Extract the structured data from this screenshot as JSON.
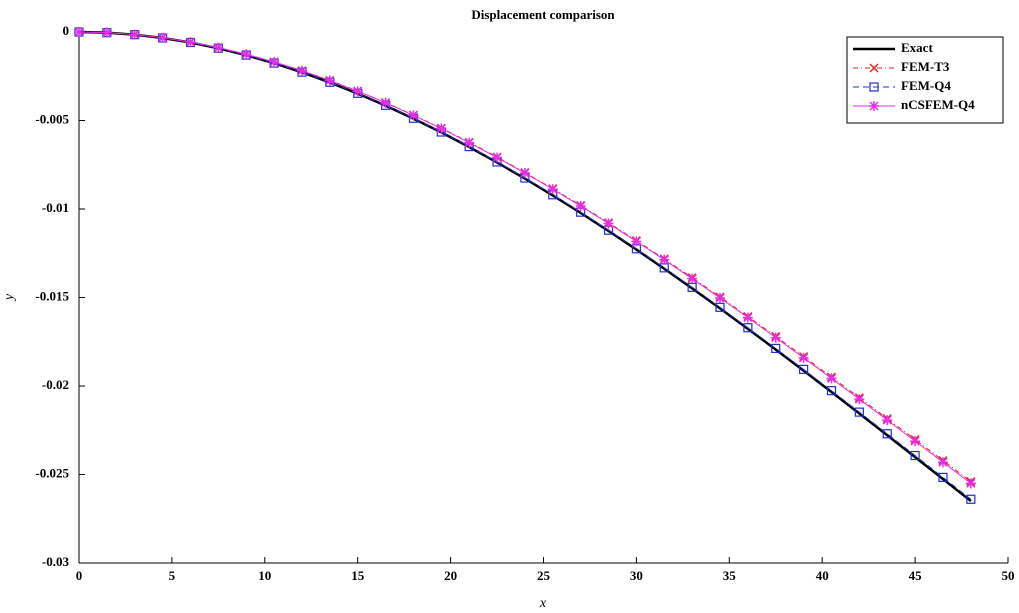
{
  "chart_data": {
    "type": "line",
    "title": "Displacement comparison",
    "x_label": "x",
    "y_label": "y",
    "x": [
      0,
      1.5,
      3,
      4.5,
      6,
      7.5,
      9,
      10.5,
      12,
      13.5,
      15,
      16.5,
      18,
      19.5,
      21,
      22.5,
      24,
      25.5,
      27,
      28.5,
      30,
      31.5,
      33,
      34.5,
      36,
      37.5,
      39,
      40.5,
      42,
      43.5,
      45,
      46.5,
      48
    ],
    "series": [
      {
        "name": "Exact",
        "color": "#000000",
        "dash": "solid",
        "marker": "none",
        "width": 2.5,
        "values": [
          0,
          -3.84e-05,
          -0.000152,
          -0.000338,
          -0.000595,
          -0.00092,
          -0.00131,
          -0.001763,
          -0.002277,
          -0.00285,
          -0.003477,
          -0.004159,
          -0.004891,
          -0.005672,
          -0.006499,
          -0.007369,
          -0.008281,
          -0.009232,
          -0.010219,
          -0.01124,
          -0.012292,
          -0.013374,
          -0.014482,
          -0.015615,
          -0.01677,
          -0.017943,
          -0.019134,
          -0.02034,
          -0.021557,
          -0.022784,
          -0.024019,
          -0.025258,
          -0.0265
        ]
      },
      {
        "name": "FEM-T3",
        "color": "#e8211c",
        "dash": "dashdot",
        "marker": "x",
        "width": 1,
        "values": [
          0,
          -3.68e-05,
          -0.000146,
          -0.000324,
          -0.000571,
          -0.000882,
          -0.001256,
          -0.00169,
          -0.002183,
          -0.002731,
          -0.003333,
          -0.003986,
          -0.004688,
          -0.005436,
          -0.006229,
          -0.007064,
          -0.007938,
          -0.008849,
          -0.009795,
          -0.010773,
          -0.011782,
          -0.012819,
          -0.013881,
          -0.014967,
          -0.016073,
          -0.017199,
          -0.01834,
          -0.019495,
          -0.020662,
          -0.021839,
          -0.023022,
          -0.02421,
          -0.0254
        ]
      },
      {
        "name": "FEM-Q4",
        "color": "#1f2fd0",
        "dash": "dashed",
        "marker": "square",
        "width": 1,
        "values": [
          0,
          -3.83e-05,
          -0.000151,
          -0.000337,
          -0.000593,
          -0.000916,
          -0.001305,
          -0.001757,
          -0.002269,
          -0.002839,
          -0.003464,
          -0.004143,
          -0.004873,
          -0.00565,
          -0.006474,
          -0.007342,
          -0.00825,
          -0.009197,
          -0.01018,
          -0.011198,
          -0.012246,
          -0.013324,
          -0.014428,
          -0.015556,
          -0.016706,
          -0.017876,
          -0.019062,
          -0.020263,
          -0.021476,
          -0.022698,
          -0.023928,
          -0.025163,
          -0.0264
        ]
      },
      {
        "name": "nCSFEM-Q4",
        "color": "#e62ee6",
        "dash": "solid",
        "marker": "asterisk",
        "width": 1,
        "values": [
          0,
          -3.7e-05,
          -0.000146,
          -0.000326,
          -0.000573,
          -0.000885,
          -0.001261,
          -0.001697,
          -0.002191,
          -0.002742,
          -0.003346,
          -0.004002,
          -0.004707,
          -0.005458,
          -0.006254,
          -0.007091,
          -0.007969,
          -0.008884,
          -0.009833,
          -0.010816,
          -0.011829,
          -0.012869,
          -0.013936,
          -0.015026,
          -0.016137,
          -0.017266,
          -0.018412,
          -0.019572,
          -0.020744,
          -0.021925,
          -0.023113,
          -0.024305,
          -0.0255
        ]
      }
    ],
    "xlim": [
      0,
      50
    ],
    "xticks": [
      0,
      5,
      10,
      15,
      20,
      25,
      30,
      35,
      40,
      45,
      50
    ],
    "ylim": [
      -0.03,
      0
    ],
    "yticks": [
      0,
      -0.005,
      -0.01,
      -0.015,
      -0.02,
      -0.025,
      -0.03
    ],
    "legend": "top-right"
  }
}
